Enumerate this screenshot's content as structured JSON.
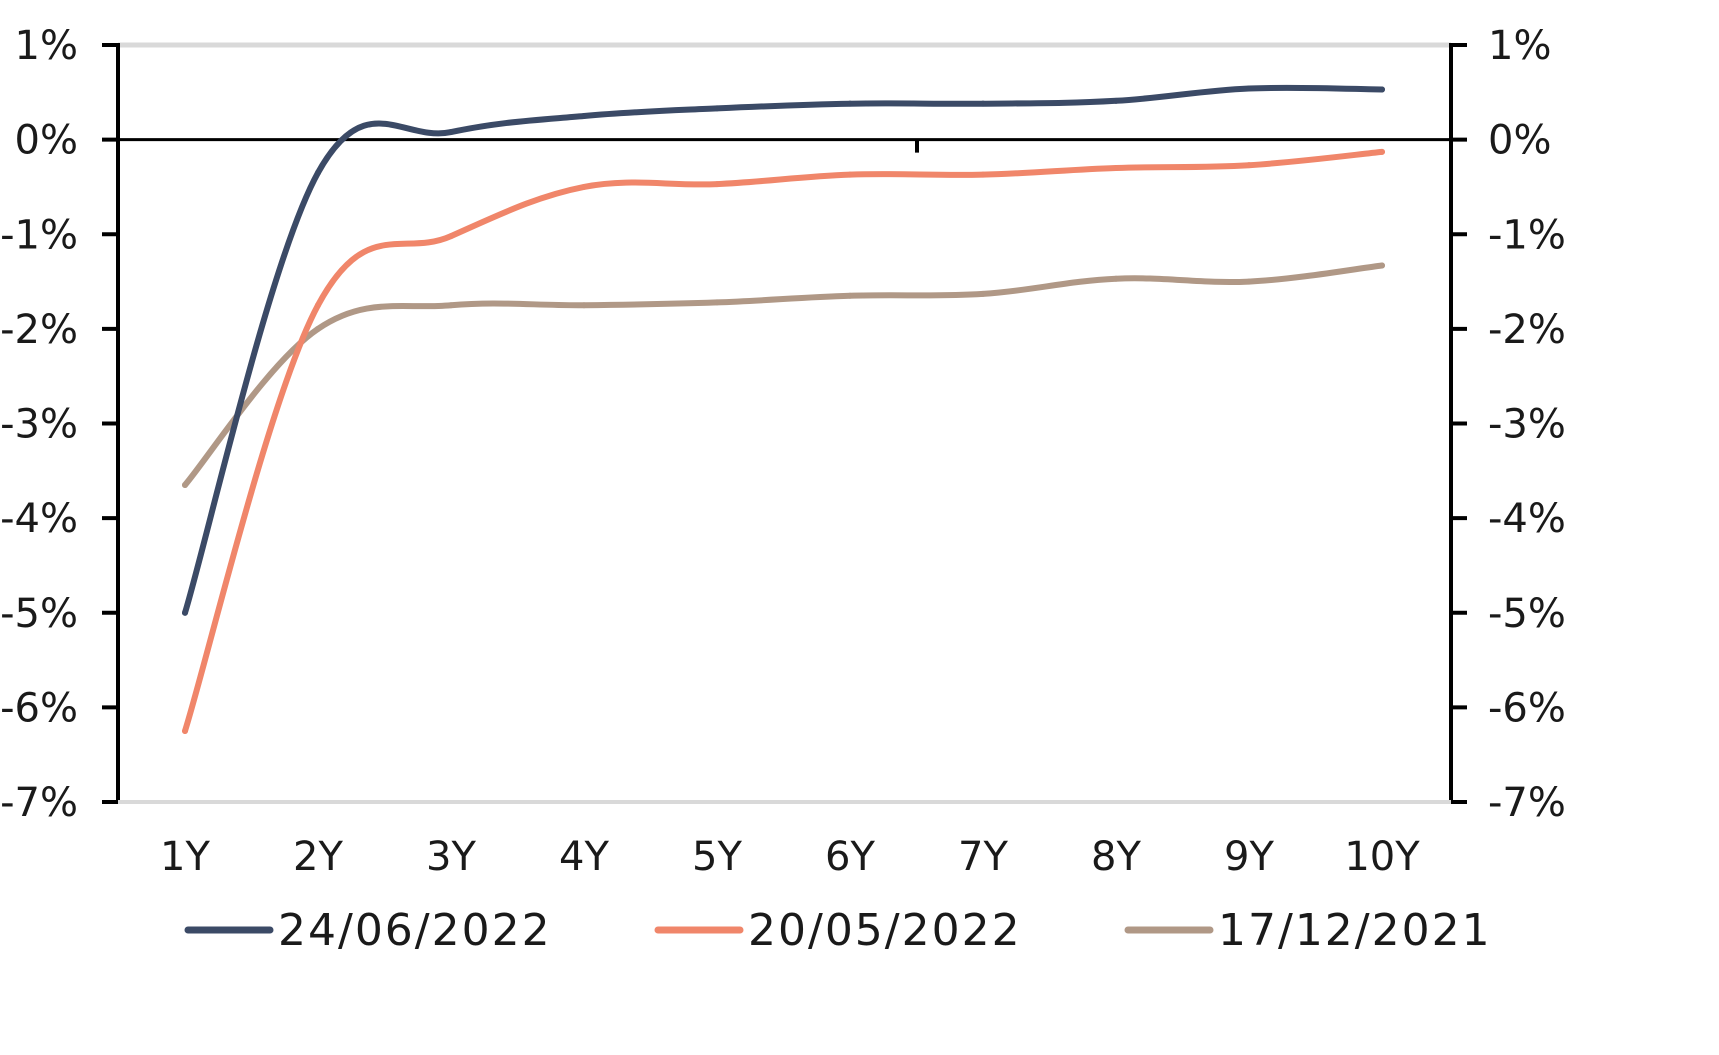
{
  "chart_data": {
    "type": "line",
    "title": "",
    "xlabel": "",
    "ylabel": "",
    "categories": [
      "1Y",
      "2Y",
      "3Y",
      "4Y",
      "5Y",
      "6Y",
      "7Y",
      "8Y",
      "9Y",
      "10Y"
    ],
    "ylim": [
      -7,
      1
    ],
    "y_ticks": [
      1,
      0,
      -1,
      -2,
      -3,
      -4,
      -5,
      -6,
      -7
    ],
    "y_tick_labels": [
      "1%",
      "0%",
      "-1%",
      "-2%",
      "-3%",
      "-4%",
      "-5%",
      "-6%",
      "-7%"
    ],
    "secondary_y_axis": true,
    "grid": "horizontal top line only",
    "legend_position": "bottom",
    "series": [
      {
        "name": "24/06/2022",
        "color": "#3b4a66",
        "values": [
          -5.0,
          -0.35,
          0.08,
          0.25,
          0.33,
          0.38,
          0.38,
          0.41,
          0.54,
          0.53
        ]
      },
      {
        "name": "20/05/2022",
        "color": "#f0866a",
        "values": [
          -6.25,
          -1.75,
          -1.02,
          -0.5,
          -0.47,
          -0.37,
          -0.37,
          -0.3,
          -0.27,
          -0.13
        ]
      },
      {
        "name": "17/12/2021",
        "color": "#b09886",
        "values": [
          -3.65,
          -2.0,
          -1.75,
          -1.75,
          -1.72,
          -1.65,
          -1.63,
          -1.47,
          -1.5,
          -1.33
        ]
      }
    ]
  }
}
